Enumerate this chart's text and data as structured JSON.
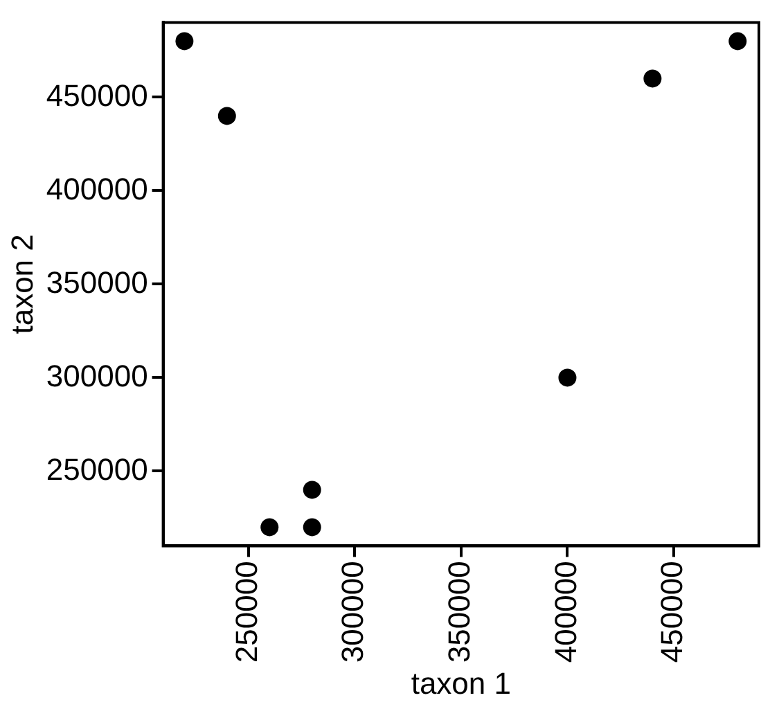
{
  "chart_data": {
    "type": "scatter",
    "xlabel": "taxon 1",
    "ylabel": "taxon 2",
    "x": [
      220000,
      240000,
      260000,
      280000,
      280000,
      400000,
      440000,
      480000
    ],
    "series": [
      {
        "color": "#000000",
        "values": [
          480000,
          440000,
          220000,
          220000,
          240000,
          300000,
          460000,
          480000
        ]
      }
    ],
    "xlim": [
      210000,
      490000
    ],
    "ylim": [
      210000,
      490000
    ],
    "xticks": [
      250000,
      300000,
      350000,
      400000,
      450000
    ],
    "yticks": [
      250000,
      300000,
      350000,
      400000,
      450000
    ],
    "grid": false,
    "legend": false,
    "marker": "circle"
  }
}
